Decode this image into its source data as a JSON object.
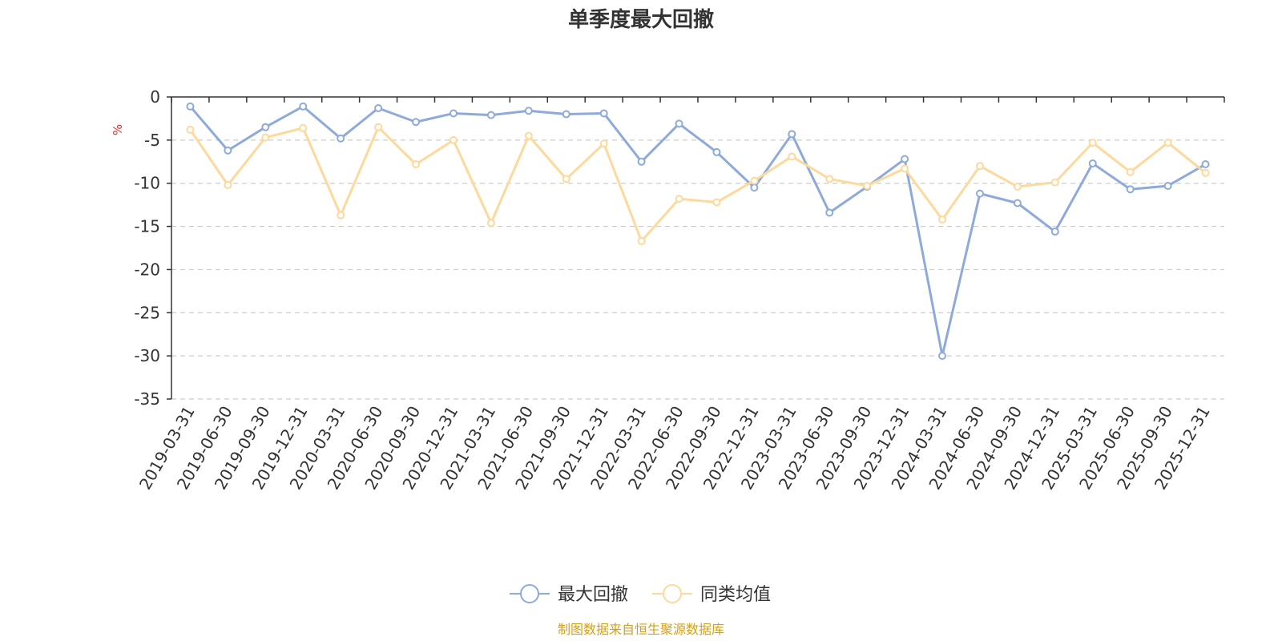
{
  "chart_data": {
    "type": "line",
    "title": "单季度最大回撤",
    "ylabel": "%",
    "ylim": [
      -35,
      0
    ],
    "yticks": [
      0,
      -5,
      -10,
      -15,
      -20,
      -25,
      -30,
      -35
    ],
    "grid": true,
    "legend_position": "bottom-center",
    "categories": [
      "2019-03-31",
      "2019-06-30",
      "2019-09-30",
      "2019-12-31",
      "2020-03-31",
      "2020-06-30",
      "2020-09-30",
      "2020-12-31",
      "2021-03-31",
      "2021-06-30",
      "2021-09-30",
      "2021-12-31",
      "2022-03-31",
      "2022-06-30",
      "2022-09-30",
      "2022-12-31",
      "2023-03-31",
      "2023-06-30",
      "2023-09-30",
      "2023-12-31",
      "2024-03-31",
      "2024-06-30",
      "2024-09-30",
      "2024-12-31",
      "2025-03-31",
      "2025-06-30",
      "2025-09-30",
      "2025-12-31"
    ],
    "series": [
      {
        "name": "最大回撤",
        "color": "#8eaadb",
        "values": [
          -1.1,
          -6.2,
          -3.5,
          -1.1,
          -4.8,
          -1.3,
          -2.9,
          -1.9,
          -2.1,
          -1.6,
          -2.0,
          -1.9,
          -7.5,
          -3.1,
          -6.4,
          -10.5,
          -4.3,
          -13.4,
          -10.4,
          -7.2,
          -30.0,
          -11.2,
          -12.3,
          -15.6,
          -7.7,
          -10.7,
          -10.3,
          -7.8
        ]
      },
      {
        "name": "同类均值",
        "color": "#fdd99b",
        "values": [
          -3.8,
          -10.2,
          -4.7,
          -3.6,
          -13.7,
          -3.5,
          -7.8,
          -5.0,
          -14.6,
          -4.5,
          -9.5,
          -5.4,
          -16.7,
          -11.8,
          -12.2,
          -9.7,
          -6.9,
          -9.5,
          -10.3,
          -8.3,
          -14.2,
          -8.0,
          -10.4,
          -9.9,
          -5.3,
          -8.7,
          -5.3,
          -8.8
        ]
      }
    ],
    "source": "制图数据来自恒生聚源数据库"
  }
}
